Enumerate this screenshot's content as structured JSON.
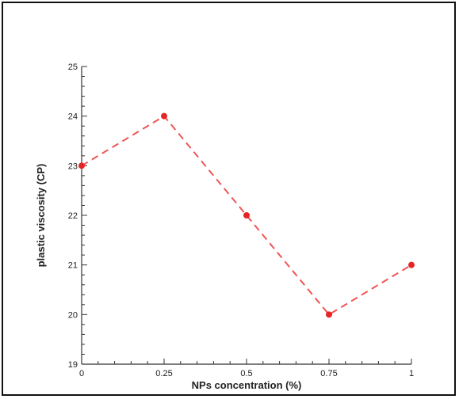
{
  "chart_data": {
    "type": "line",
    "title": "",
    "xlabel": "NPs concentration (%)",
    "ylabel": "plastic viscosity (CP)",
    "x": [
      0,
      0.25,
      0.5,
      0.75,
      1
    ],
    "series": [
      {
        "values": [
          23,
          24,
          22,
          20,
          21
        ]
      }
    ],
    "xlim": [
      0,
      1
    ],
    "ylim": [
      19,
      25
    ],
    "x_ticks": [
      0,
      0.25,
      0.5,
      0.75,
      1
    ],
    "x_tick_labels": [
      "0",
      "0.25",
      "0.5",
      "0.75",
      "1"
    ],
    "y_ticks": [
      19,
      20,
      21,
      22,
      23,
      24,
      25
    ],
    "y_tick_labels": [
      "19",
      "20",
      "21",
      "22",
      "23",
      "24",
      "25"
    ],
    "x_minor_divisions": 5,
    "y_minor_divisions": 5,
    "line_style": "dashed",
    "marker": "circle",
    "grid": false,
    "legend": "none",
    "colors": {
      "series": "#f05555",
      "marker": "#e52525",
      "axis": "#333333",
      "frame": "#111111"
    }
  }
}
